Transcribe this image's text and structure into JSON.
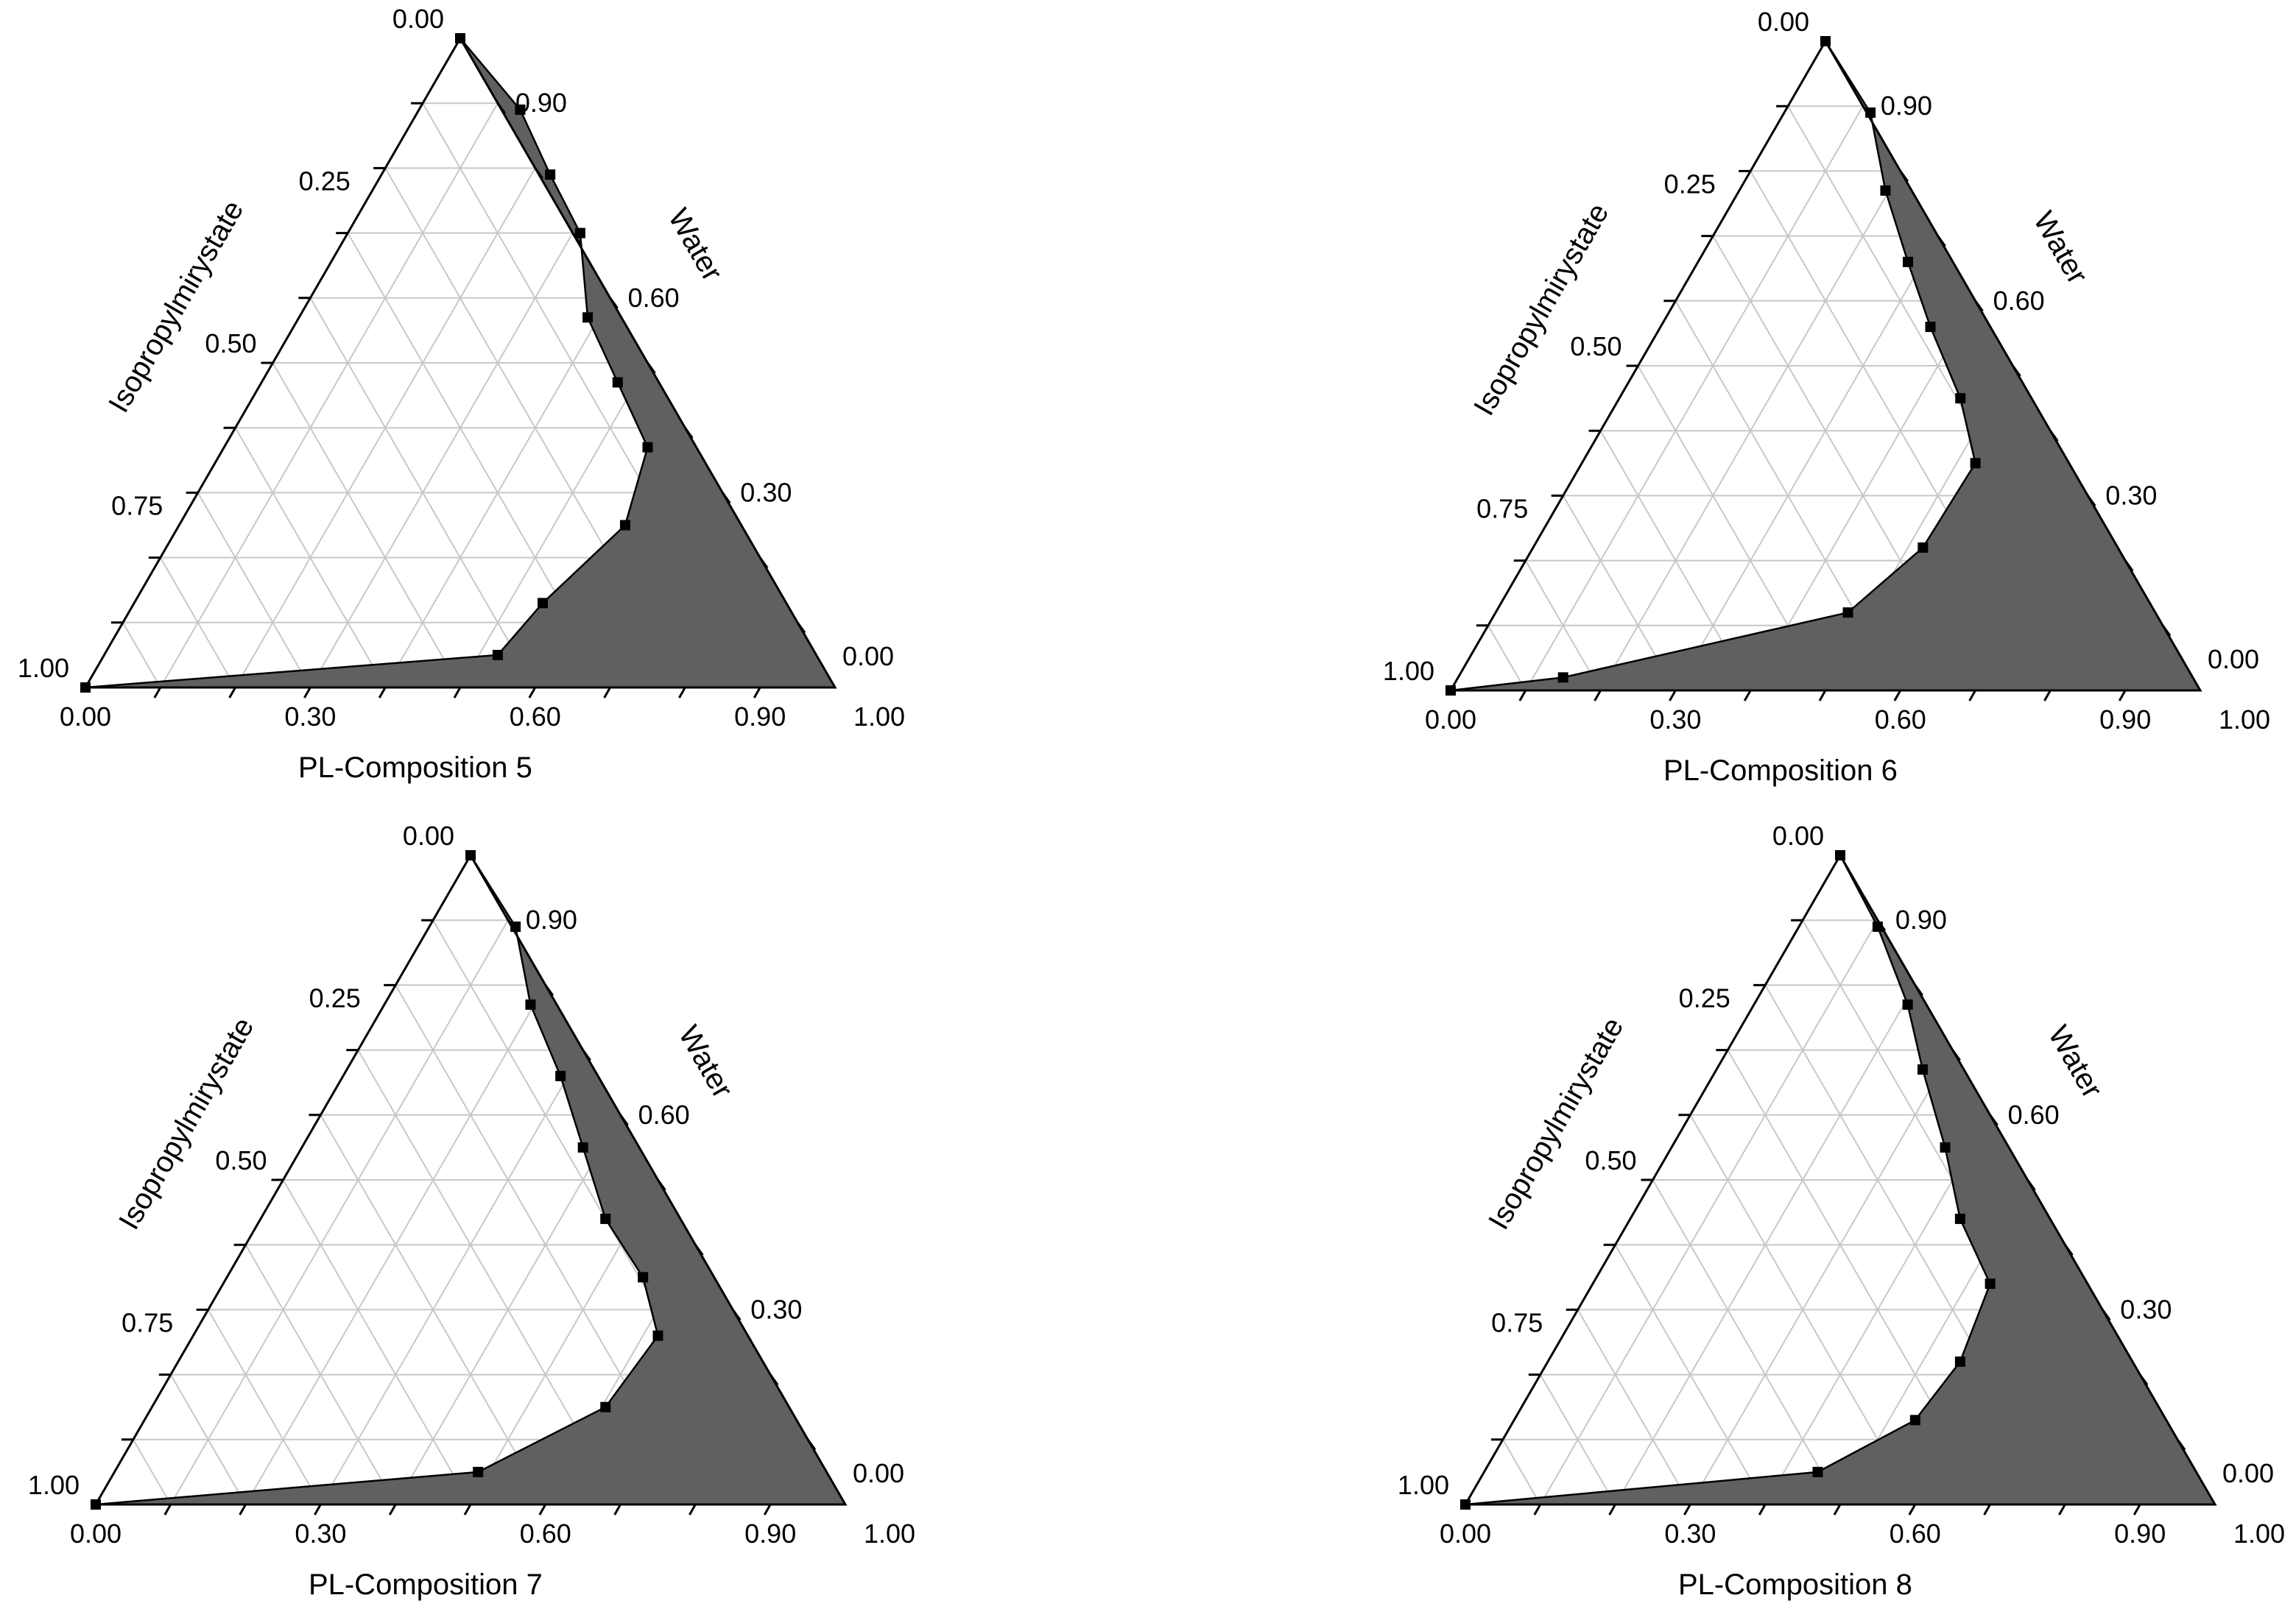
{
  "chart_data": [
    {
      "type": "ternary",
      "title": "PL-Composition 5",
      "axes": {
        "left_edge_label": "Isopropylmirystate",
        "right_edge_label": "Water"
      },
      "bottom_ticks": [
        "0.00",
        "0.30",
        "0.60",
        "0.90",
        "1.00"
      ],
      "left_ticks": [
        "1.00",
        "0.75",
        "0.50",
        "0.25",
        "0.00"
      ],
      "right_ticks": [
        "0.00",
        "0.30",
        "0.60",
        "0.90"
      ],
      "region_fill": "#606060",
      "boundary_points": [
        [
          0.0,
          0.0
        ],
        [
          0.55,
          0.05
        ],
        [
          0.61,
          0.13
        ],
        [
          0.72,
          0.25
        ],
        [
          0.75,
          0.37
        ],
        [
          0.71,
          0.47
        ],
        [
          0.67,
          0.57
        ],
        [
          0.66,
          0.7
        ],
        [
          0.62,
          0.79
        ],
        [
          0.58,
          0.89
        ],
        [
          0.5,
          1.0
        ]
      ]
    },
    {
      "type": "ternary",
      "title": "PL-Composition 6",
      "axes": {
        "left_edge_label": "Isopropylmirystate",
        "right_edge_label": "Water"
      },
      "bottom_ticks": [
        "0.00",
        "0.30",
        "0.60",
        "0.90",
        "1.00"
      ],
      "left_ticks": [
        "1.00",
        "0.75",
        "0.50",
        "0.25",
        "0.00"
      ],
      "right_ticks": [
        "0.00",
        "0.30",
        "0.60",
        "0.90"
      ],
      "region_fill": "#606060",
      "boundary_points": [
        [
          0.0,
          0.0
        ],
        [
          0.15,
          0.02
        ],
        [
          0.53,
          0.12
        ],
        [
          0.63,
          0.22
        ],
        [
          0.7,
          0.35
        ],
        [
          0.68,
          0.45
        ],
        [
          0.64,
          0.56
        ],
        [
          0.61,
          0.66
        ],
        [
          0.58,
          0.77
        ],
        [
          0.56,
          0.89
        ],
        [
          0.5,
          1.0
        ]
      ]
    },
    {
      "type": "ternary",
      "title": "PL-Composition 7",
      "axes": {
        "left_edge_label": "Isopropylmirystate",
        "right_edge_label": "Water"
      },
      "bottom_ticks": [
        "0.00",
        "0.30",
        "0.60",
        "0.90",
        "1.00"
      ],
      "left_ticks": [
        "1.00",
        "0.75",
        "0.50",
        "0.25",
        "0.00"
      ],
      "right_ticks": [
        "0.00",
        "0.30",
        "0.60",
        "0.90"
      ],
      "region_fill": "#606060",
      "boundary_points": [
        [
          0.0,
          0.0
        ],
        [
          0.51,
          0.05
        ],
        [
          0.68,
          0.15
        ],
        [
          0.75,
          0.26
        ],
        [
          0.73,
          0.35
        ],
        [
          0.68,
          0.44
        ],
        [
          0.65,
          0.55
        ],
        [
          0.62,
          0.66
        ],
        [
          0.58,
          0.77
        ],
        [
          0.56,
          0.89
        ],
        [
          0.5,
          1.0
        ]
      ]
    },
    {
      "type": "ternary",
      "title": "PL-Composition 8",
      "axes": {
        "left_edge_label": "Isopropylmirystate",
        "right_edge_label": "Water"
      },
      "bottom_ticks": [
        "0.00",
        "0.30",
        "0.60",
        "0.90",
        "1.00"
      ],
      "left_ticks": [
        "1.00",
        "0.75",
        "0.50",
        "0.25",
        "0.00"
      ],
      "right_ticks": [
        "0.00",
        "0.30",
        "0.60",
        "0.90"
      ],
      "region_fill": "#606060",
      "boundary_points": [
        [
          0.0,
          0.0
        ],
        [
          0.47,
          0.05
        ],
        [
          0.6,
          0.13
        ],
        [
          0.66,
          0.22
        ],
        [
          0.7,
          0.34
        ],
        [
          0.66,
          0.44
        ],
        [
          0.64,
          0.55
        ],
        [
          0.61,
          0.67
        ],
        [
          0.59,
          0.77
        ],
        [
          0.55,
          0.89
        ],
        [
          0.5,
          1.0
        ]
      ]
    }
  ]
}
